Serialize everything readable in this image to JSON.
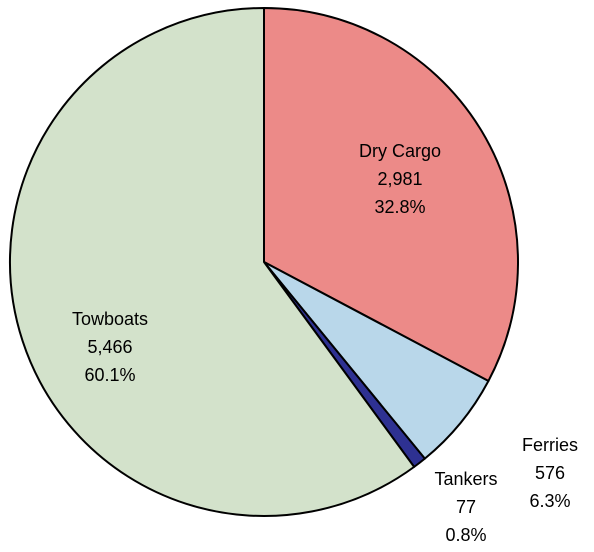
{
  "chart_data": {
    "type": "pie",
    "categories": [
      "Dry Cargo",
      "Ferries",
      "Tankers",
      "Towboats"
    ],
    "values": [
      2981,
      576,
      77,
      5466
    ],
    "value_labels": [
      "2,981",
      "576",
      "77",
      "5,466"
    ],
    "percent_labels": [
      "32.8%",
      "6.3%",
      "0.8%",
      "60.1%"
    ],
    "colors": [
      "#ec8a88",
      "#b9d7ea",
      "#2e3192",
      "#d3e2cb"
    ]
  }
}
